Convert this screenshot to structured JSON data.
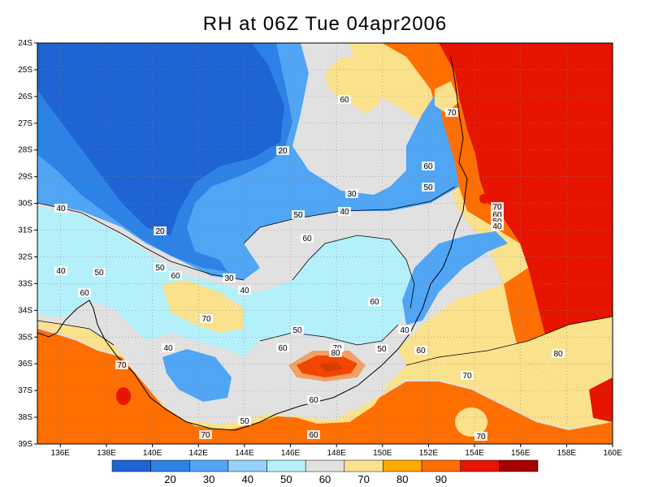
{
  "title": "RH at 06Z Tue 04apr2006",
  "map": {
    "lat_labels": [
      "24S",
      "25S",
      "26S",
      "27S",
      "28S",
      "29S",
      "30S",
      "31S",
      "32S",
      "33S",
      "34S",
      "35S",
      "36S",
      "37S",
      "38S",
      "39S"
    ],
    "lon_labels": [
      "136E",
      "138E",
      "140E",
      "142E",
      "144E",
      "146E",
      "148E",
      "150E",
      "152E",
      "154E",
      "156E",
      "158E",
      "160E"
    ],
    "contour_labels": [
      {
        "text": "60"
      },
      {
        "text": "70"
      },
      {
        "text": "60"
      },
      {
        "text": "50"
      },
      {
        "text": "20"
      },
      {
        "text": "30"
      },
      {
        "text": "40"
      },
      {
        "text": "40"
      },
      {
        "text": "50"
      },
      {
        "text": "60"
      },
      {
        "text": "20"
      },
      {
        "text": "70"
      },
      {
        "text": "60"
      },
      {
        "text": "50"
      },
      {
        "text": "40"
      },
      {
        "text": "40"
      },
      {
        "text": "50"
      },
      {
        "text": "30"
      },
      {
        "text": "60"
      },
      {
        "text": "40"
      },
      {
        "text": "60"
      },
      {
        "text": "50"
      },
      {
        "text": "70"
      },
      {
        "text": "40"
      },
      {
        "text": "50"
      },
      {
        "text": "60"
      },
      {
        "text": "40"
      },
      {
        "text": "60"
      },
      {
        "text": "70"
      },
      {
        "text": "80"
      },
      {
        "text": "60"
      },
      {
        "text": "50"
      },
      {
        "text": "60"
      },
      {
        "text": "50"
      },
      {
        "text": "70"
      },
      {
        "text": "70"
      },
      {
        "text": "80"
      },
      {
        "text": "70"
      },
      {
        "text": "60"
      },
      {
        "text": "70"
      }
    ]
  },
  "colorbar": {
    "tick_labels": [
      "20",
      "30",
      "40",
      "50",
      "60",
      "70",
      "80",
      "90"
    ],
    "colors": [
      "#1e64d2",
      "#2d82e6",
      "#50a5f5",
      "#96d2fa",
      "#b4f0fa",
      "#e1e1e1",
      "#fae18c",
      "#ffaa00",
      "#ff6e00",
      "#e61400",
      "#a50000"
    ]
  }
}
